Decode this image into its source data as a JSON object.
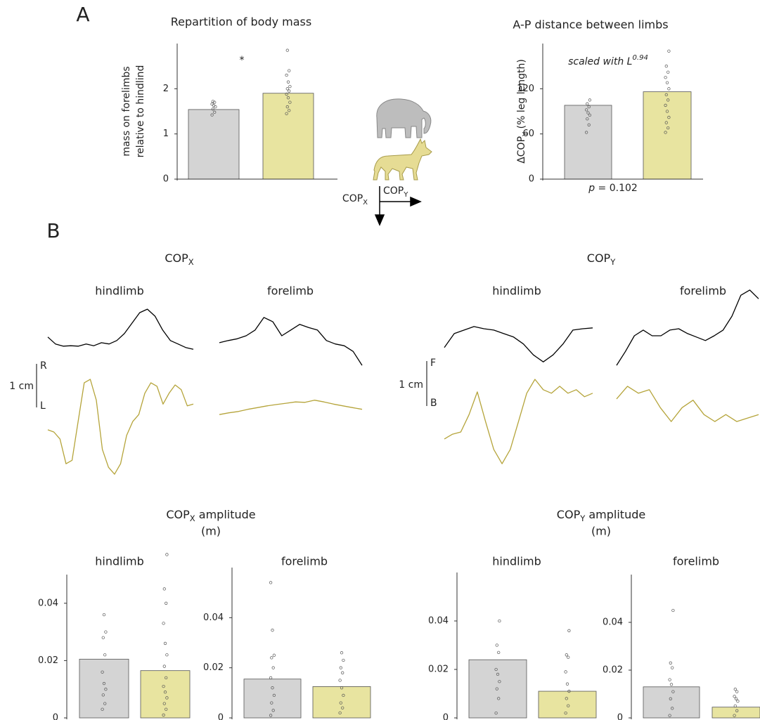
{
  "figure": {
    "panel_a": "A",
    "panel_b": "B",
    "groups": [
      {
        "text": "COP",
        "sub": "X"
      },
      {
        "text": "COP",
        "sub": "Y"
      }
    ],
    "amplitude_titles": [
      {
        "text": "COP",
        "sub": "X",
        "after": " amplitude",
        "line2": "(m)"
      },
      {
        "text": "COP",
        "sub": "Y",
        "after": " amplitude",
        "line2": "(m)"
      }
    ],
    "schematic": {
      "cop_x": {
        "text": "COP",
        "sub": "X"
      },
      "cop_y": {
        "text": "COP",
        "sub": "Y"
      }
    },
    "scale_bars": [
      {
        "length": "1 cm",
        "top": "R",
        "bottom": "L"
      },
      {
        "length": "1 cm",
        "top": "F",
        "bottom": "B"
      }
    ]
  },
  "chart_data": [
    {
      "type": "bar",
      "title": "Repartition of body mass",
      "y_label": [
        "mass on forelimbs",
        "relative to hindlind"
      ],
      "ylim": [
        0,
        3
      ],
      "yticks": [
        0,
        1,
        2
      ],
      "values": [
        1.54,
        1.9
      ],
      "colors": [
        "#d4d4d4",
        "#e8e4a0"
      ],
      "points": [
        [
          1.42,
          1.48,
          1.55,
          1.6,
          1.63,
          1.66,
          1.7,
          1.72
        ],
        [
          1.45,
          1.52,
          1.6,
          1.7,
          1.8,
          1.88,
          1.95,
          2.0,
          2.05,
          2.15,
          2.3,
          2.4,
          2.85
        ]
      ],
      "star": "*"
    },
    {
      "type": "bar",
      "title": "A-P distance between limbs",
      "y_label": {
        "text": "ΔCOP",
        "sub": "Y",
        "after": " (% leg length)"
      },
      "ylim": [
        0,
        180
      ],
      "yticks": [
        0,
        60,
        120
      ],
      "values": [
        98,
        116
      ],
      "colors": [
        "#d4d4d4",
        "#e8e4a0"
      ],
      "points": [
        [
          62,
          72,
          80,
          85,
          88,
          92,
          96,
          100,
          105
        ],
        [
          62,
          68,
          75,
          82,
          90,
          98,
          105,
          112,
          120,
          128,
          135,
          142,
          150,
          170
        ]
      ],
      "note": {
        "text": "scaled with L",
        "sup": "0.94"
      },
      "p_value": {
        "text": "p",
        "after": " = 0.102"
      }
    },
    {
      "type": "line",
      "title": "hindlimb",
      "series": [
        {
          "color": "#000000",
          "values": [
            3.39,
            3.23,
            3.18,
            3.19,
            3.18,
            3.23,
            3.19,
            3.26,
            3.23,
            3.31,
            3.47,
            3.71,
            3.95,
            4.03,
            3.87,
            3.55,
            3.31,
            3.23,
            3.15,
            3.11
          ]
        },
        {
          "color": "#b5a43a",
          "values": [
            1.26,
            1.21,
            1.05,
            0.48,
            0.56,
            1.45,
            2.34,
            2.42,
            1.94,
            0.81,
            0.4,
            0.24,
            0.48,
            1.13,
            1.45,
            1.61,
            2.1,
            2.34,
            2.26,
            1.85,
            2.1,
            2.29,
            2.18,
            1.81,
            1.85
          ]
        }
      ]
    },
    {
      "type": "line",
      "title": "forelimb",
      "series": [
        {
          "color": "#000000",
          "values": [
            3.26,
            3.31,
            3.35,
            3.42,
            3.55,
            3.84,
            3.74,
            3.42,
            3.55,
            3.68,
            3.61,
            3.55,
            3.31,
            3.23,
            3.19,
            3.06,
            2.74
          ]
        },
        {
          "color": "#b5a43a",
          "values": [
            1.61,
            1.65,
            1.68,
            1.73,
            1.77,
            1.81,
            1.84,
            1.87,
            1.9,
            1.89,
            1.94,
            1.9,
            1.85,
            1.81,
            1.77,
            1.73
          ]
        }
      ]
    },
    {
      "type": "line",
      "title": "hindlimb",
      "series": [
        {
          "color": "#000000",
          "values": [
            3.15,
            3.47,
            3.55,
            3.63,
            3.58,
            3.55,
            3.47,
            3.39,
            3.23,
            2.98,
            2.82,
            2.98,
            3.23,
            3.55,
            3.58,
            3.6
          ]
        },
        {
          "color": "#b5a43a",
          "values": [
            1.05,
            1.16,
            1.21,
            1.61,
            2.13,
            1.45,
            0.81,
            0.48,
            0.81,
            1.45,
            2.1,
            2.42,
            2.18,
            2.1,
            2.26,
            2.1,
            2.18,
            2.02,
            2.1
          ]
        }
      ]
    },
    {
      "type": "line",
      "title": "forelimb",
      "series": [
        {
          "color": "#000000",
          "values": [
            2.74,
            3.06,
            3.42,
            3.55,
            3.42,
            3.42,
            3.55,
            3.58,
            3.47,
            3.39,
            3.31,
            3.42,
            3.55,
            3.87,
            4.35,
            4.47,
            4.27
          ]
        },
        {
          "color": "#b5a43a",
          "values": [
            1.97,
            2.26,
            2.1,
            2.18,
            1.77,
            1.45,
            1.77,
            1.94,
            1.61,
            1.45,
            1.61,
            1.45,
            1.53,
            1.61
          ]
        }
      ]
    },
    {
      "type": "bar",
      "title": "hindlimb",
      "ylim": [
        0,
        0.05
      ],
      "yticks": [
        0,
        0.02,
        0.04
      ],
      "values": [
        0.0205,
        0.0165
      ],
      "colors": [
        "#d4d4d4",
        "#e8e4a0"
      ],
      "points": [
        [
          0.003,
          0.005,
          0.008,
          0.01,
          0.012,
          0.016,
          0.022,
          0.028,
          0.03,
          0.036
        ],
        [
          0.001,
          0.003,
          0.005,
          0.007,
          0.009,
          0.011,
          0.014,
          0.018,
          0.022,
          0.026,
          0.033,
          0.04,
          0.045,
          0.057
        ]
      ]
    },
    {
      "type": "bar",
      "title": "forelimb",
      "ylim": [
        0,
        0.06
      ],
      "yticks": [
        0,
        0.02,
        0.04
      ],
      "values": [
        0.0155,
        0.0125
      ],
      "colors": [
        "#d4d4d4",
        "#e8e4a0"
      ],
      "points": [
        [
          0.001,
          0.003,
          0.006,
          0.009,
          0.012,
          0.016,
          0.02,
          0.024,
          0.025,
          0.035,
          0.054
        ],
        [
          0.002,
          0.004,
          0.006,
          0.009,
          0.012,
          0.015,
          0.018,
          0.02,
          0.023,
          0.026
        ]
      ]
    },
    {
      "type": "bar",
      "title": "hindlimb",
      "ylim": [
        0,
        0.06
      ],
      "yticks": [
        0,
        0.02,
        0.04
      ],
      "values": [
        0.024,
        0.011
      ],
      "colors": [
        "#d4d4d4",
        "#e8e4a0"
      ],
      "points": [
        [
          0.002,
          0.008,
          0.012,
          0.015,
          0.018,
          0.02,
          0.027,
          0.03,
          0.04
        ],
        [
          0.002,
          0.005,
          0.008,
          0.011,
          0.014,
          0.019,
          0.025,
          0.026,
          0.036
        ]
      ]
    },
    {
      "type": "bar",
      "title": "forelimb",
      "ylim": [
        0,
        0.06
      ],
      "yticks": [
        0,
        0.02,
        0.04
      ],
      "values": [
        0.013,
        0.0045
      ],
      "colors": [
        "#d4d4d4",
        "#e8e4a0"
      ],
      "points": [
        [
          0.001,
          0.004,
          0.008,
          0.011,
          0.014,
          0.016,
          0.021,
          0.023,
          0.045
        ],
        [
          0.001,
          0.003,
          0.005,
          0.007,
          0.008,
          0.009,
          0.011,
          0.012
        ]
      ]
    }
  ]
}
